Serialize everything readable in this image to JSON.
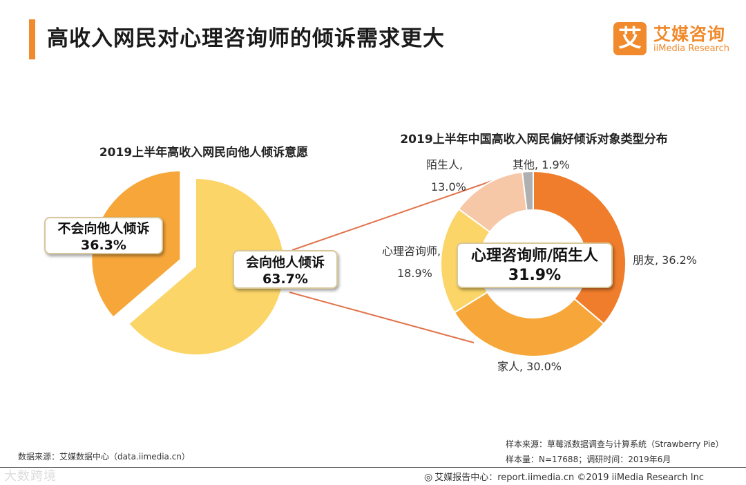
{
  "colors": {
    "accent": "#f08a2c",
    "yellow": "#fbd567",
    "orange": "#f7a73a",
    "dark_orange": "#ef7d2b",
    "peach": "#f6c8a8",
    "gray": "#b0b0b0",
    "connector": "#e0734a"
  },
  "header": {
    "title": "高收入网民对心理咨询师的倾诉需求更大"
  },
  "logo": {
    "mark": "艾",
    "cn_name": "艾媒咨询",
    "en_name": "iiMedia Research"
  },
  "chart_data": [
    {
      "type": "pie",
      "title": "2019上半年高收入网民向他人倾诉意愿",
      "slices": [
        {
          "label": "会向他人倾诉",
          "value": 63.7,
          "value_text": "63.7%",
          "color": "#fbd567"
        },
        {
          "label": "不会向他人倾诉",
          "value": 36.3,
          "value_text": "36.3%",
          "color": "#f7a73a"
        }
      ]
    },
    {
      "type": "pie",
      "subtype": "donut",
      "title": "2019上半年中国高收入网民偏好倾诉对象类型分布",
      "slices": [
        {
          "label": "朋友",
          "value": 36.2,
          "display": "朋友, 36.2%",
          "color": "#ef7d2b"
        },
        {
          "label": "家人",
          "value": 30.0,
          "display": "家人, 30.0%",
          "color": "#f7a73a"
        },
        {
          "label": "心理咨询师",
          "value": 18.9,
          "display_line1": "心理咨询师,",
          "display_line2": "18.9%",
          "color": "#fbd567"
        },
        {
          "label": "陌生人",
          "value": 13.0,
          "display_line1": "陌生人,",
          "display_line2": "13.0%",
          "color": "#f6c8a8"
        },
        {
          "label": "其他",
          "value": 1.9,
          "display": "其他, 1.9%",
          "color": "#b0b0b0"
        }
      ],
      "center_annotation": {
        "label": "心理咨询师/陌生人",
        "value": "31.9%"
      }
    }
  ],
  "footer": {
    "source": "数据来源：艾媒数据中心（data.iimedia.cn）",
    "sample_source": "样本来源：草莓派数据调查与计算系统（Strawberry Pie）",
    "sample_size": "样本量：N=17688；调研时间：2019年6月",
    "report_center": "艾媒报告中心：report.iimedia.cn   ©2019  iiMedia Research  Inc",
    "watermark": "大数跨境"
  }
}
